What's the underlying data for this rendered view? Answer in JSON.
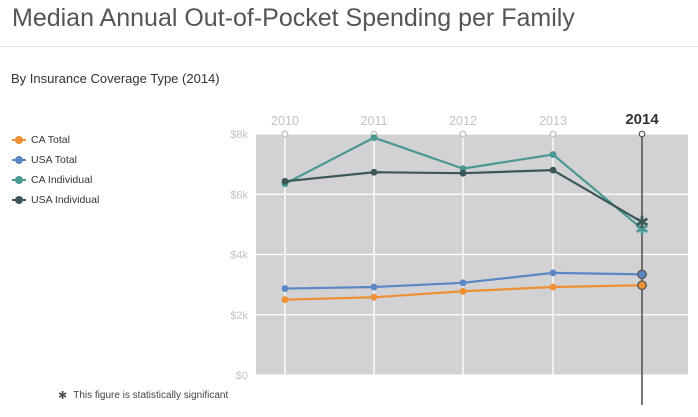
{
  "title": "Median Annual Out-of-Pocket Spending per Family",
  "subtitle": "By Insurance Coverage Type (2014)",
  "footnote": {
    "icon": "star-icon",
    "text": "This figure is statistically significant"
  },
  "chart_data": {
    "type": "line",
    "x": [
      "2010",
      "2011",
      "2012",
      "2013",
      "2014"
    ],
    "selected_x": "2014",
    "ylim": [
      0,
      8000
    ],
    "y_ticks": [
      "$0",
      "$2k",
      "$4k",
      "$6k",
      "$8k"
    ],
    "grid": true,
    "legend_position": "left",
    "series": [
      {
        "name": "CA Total",
        "color": "#ee8f34",
        "values": [
          2500,
          2580,
          2780,
          2920,
          2980
        ]
      },
      {
        "name": "USA Total",
        "color": "#5b87c5",
        "values": [
          2870,
          2920,
          3060,
          3390,
          3340
        ]
      },
      {
        "name": "CA Individual",
        "color": "#4b9794",
        "values": [
          6350,
          7880,
          6850,
          7320,
          4850
        ]
      },
      {
        "name": "USA Individual",
        "color": "#3b5757",
        "values": [
          6430,
          6730,
          6700,
          6800,
          5080
        ]
      }
    ],
    "significant_markers": [
      {
        "series": "CA Individual",
        "x": "2014"
      },
      {
        "series": "USA Individual",
        "x": "2014"
      }
    ]
  }
}
